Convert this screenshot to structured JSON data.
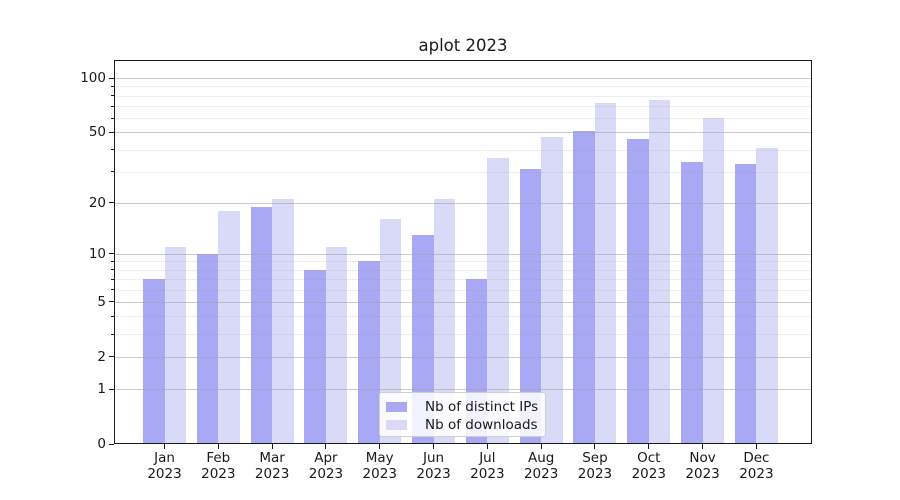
{
  "title": "aplot 2023",
  "chart_data": {
    "type": "bar",
    "title": "aplot 2023",
    "categories": [
      "Jan",
      "Feb",
      "Mar",
      "Apr",
      "May",
      "Jun",
      "Jul",
      "Aug",
      "Sep",
      "Oct",
      "Nov",
      "Dec"
    ],
    "category_year": "2023",
    "series": [
      {
        "name": "Nb of distinct IPs",
        "color": "#a8a8f5",
        "values": [
          7,
          10,
          19,
          8,
          9,
          13,
          7,
          31,
          51,
          46,
          34,
          33
        ]
      },
      {
        "name": "Nb of downloads",
        "color": "#d9d9f8",
        "values": [
          11,
          18,
          21,
          11,
          16,
          21,
          36,
          47,
          73,
          76,
          60,
          41
        ]
      }
    ],
    "xlabel": "",
    "ylabel": "",
    "yscale": "log1p",
    "ylim": [
      0,
      126
    ],
    "ytick_major": [
      0,
      1,
      2,
      5,
      10,
      20,
      50,
      100
    ],
    "ytick_minor": [
      3,
      4,
      6,
      7,
      8,
      9,
      30,
      40,
      60,
      70,
      80,
      90
    ],
    "grid": "both, drawn above bars",
    "legend_position": "lower center",
    "text_color": "#1a1a1a",
    "background_color": "#ffffff"
  }
}
